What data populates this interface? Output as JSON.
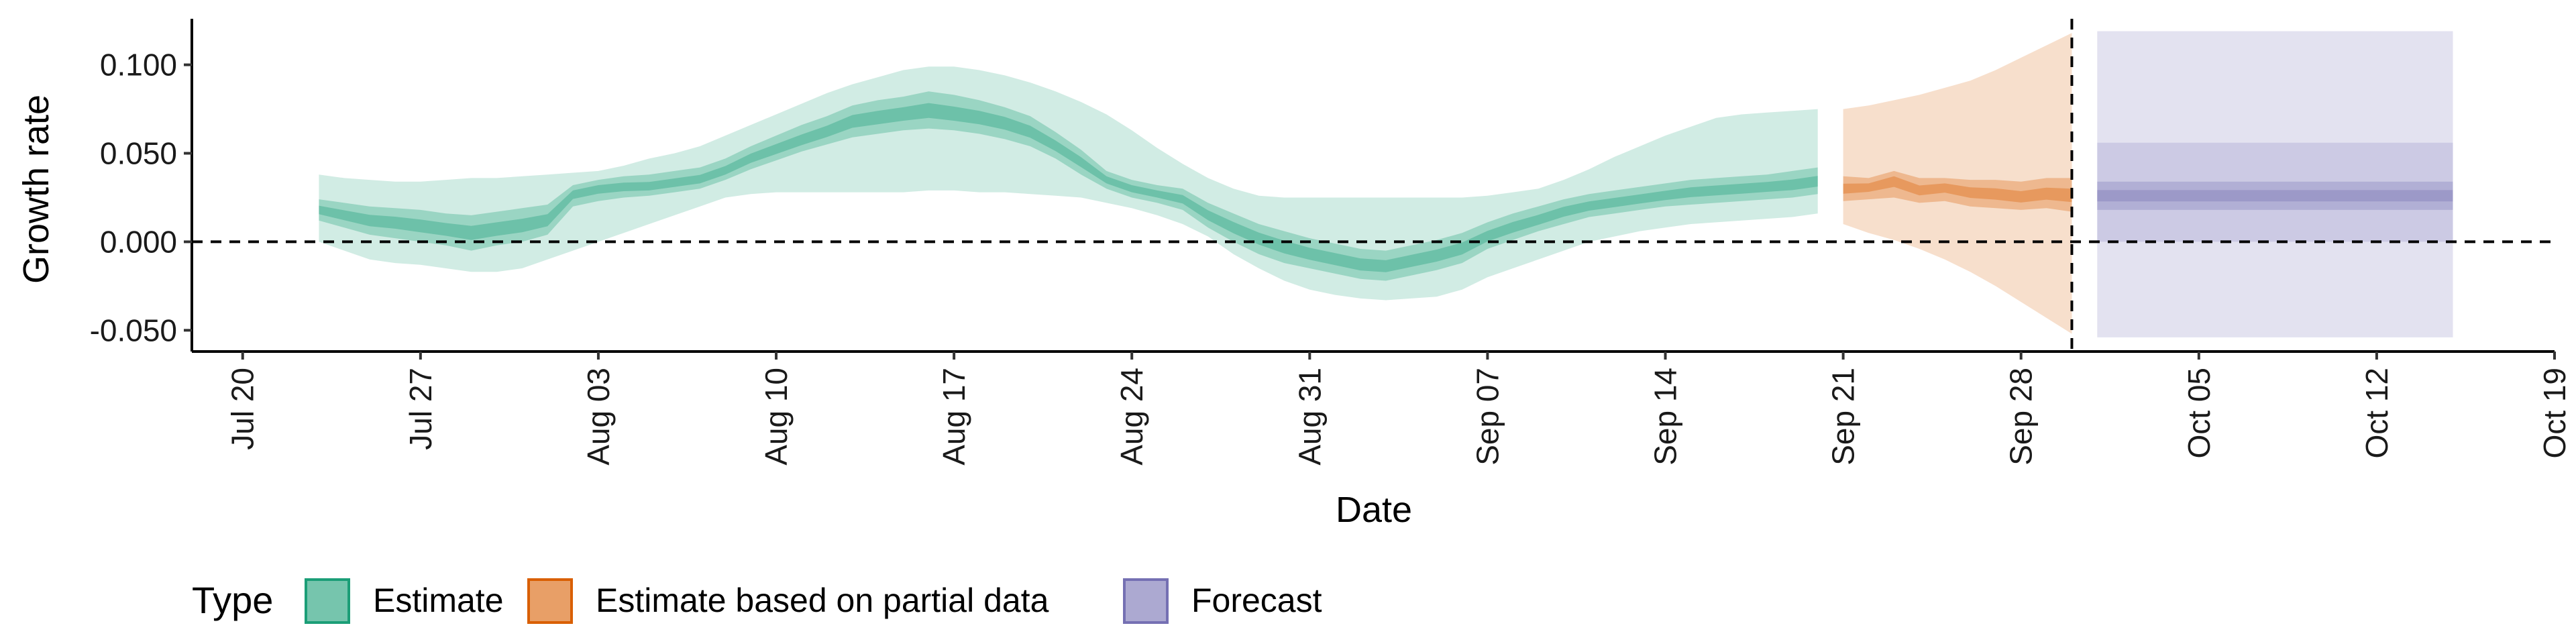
{
  "chart_data": {
    "type": "area",
    "xlabel": "Date",
    "ylabel": "Growth rate",
    "xlim": [
      "2020-07-18",
      "2020-10-19"
    ],
    "ylim": [
      -0.062,
      0.126
    ],
    "x_ticks": [
      {
        "date": "2020-07-20",
        "label": "Jul 20"
      },
      {
        "date": "2020-07-27",
        "label": "Jul 27"
      },
      {
        "date": "2020-08-03",
        "label": "Aug 03"
      },
      {
        "date": "2020-08-10",
        "label": "Aug 10"
      },
      {
        "date": "2020-08-17",
        "label": "Aug 17"
      },
      {
        "date": "2020-08-24",
        "label": "Aug 24"
      },
      {
        "date": "2020-08-31",
        "label": "Aug 31"
      },
      {
        "date": "2020-09-07",
        "label": "Sep 07"
      },
      {
        "date": "2020-09-14",
        "label": "Sep 14"
      },
      {
        "date": "2020-09-21",
        "label": "Sep 21"
      },
      {
        "date": "2020-09-28",
        "label": "Sep 28"
      },
      {
        "date": "2020-10-05",
        "label": "Oct 05"
      },
      {
        "date": "2020-10-12",
        "label": "Oct 12"
      },
      {
        "date": "2020-10-19",
        "label": "Oct 19"
      }
    ],
    "y_ticks": [
      {
        "value": 0.1,
        "label": "0.100"
      },
      {
        "value": 0.05,
        "label": "0.050"
      },
      {
        "value": 0.0,
        "label": "0.000"
      },
      {
        "value": -0.05,
        "label": "-0.050"
      }
    ],
    "reference_lines": {
      "horizontal_y": 0.0,
      "vertical_x": "2020-09-30"
    },
    "legend": {
      "title": "Type",
      "position": "bottom-left"
    },
    "series": [
      {
        "name": "Estimate",
        "color": "#1B9E77",
        "x": [
          "2020-07-23",
          "2020-07-24",
          "2020-07-25",
          "2020-07-26",
          "2020-07-27",
          "2020-07-28",
          "2020-07-29",
          "2020-07-30",
          "2020-07-31",
          "2020-08-01",
          "2020-08-02",
          "2020-08-03",
          "2020-08-04",
          "2020-08-05",
          "2020-08-06",
          "2020-08-07",
          "2020-08-08",
          "2020-08-09",
          "2020-08-10",
          "2020-08-11",
          "2020-08-12",
          "2020-08-13",
          "2020-08-14",
          "2020-08-15",
          "2020-08-16",
          "2020-08-17",
          "2020-08-18",
          "2020-08-19",
          "2020-08-20",
          "2020-08-21",
          "2020-08-22",
          "2020-08-23",
          "2020-08-24",
          "2020-08-25",
          "2020-08-26",
          "2020-08-27",
          "2020-08-28",
          "2020-08-29",
          "2020-08-30",
          "2020-08-31",
          "2020-09-01",
          "2020-09-02",
          "2020-09-03",
          "2020-09-04",
          "2020-09-05",
          "2020-09-06",
          "2020-09-07",
          "2020-09-08",
          "2020-09-09",
          "2020-09-10",
          "2020-09-11",
          "2020-09-12",
          "2020-09-13",
          "2020-09-14",
          "2020-09-15",
          "2020-09-16",
          "2020-09-17",
          "2020-09-18",
          "2020-09-19",
          "2020-09-20"
        ],
        "median": [
          0.018,
          0.015,
          0.012,
          0.011,
          0.009,
          0.007,
          0.005,
          0.007,
          0.009,
          0.012,
          0.027,
          0.03,
          0.031,
          0.031,
          0.033,
          0.035,
          0.04,
          0.047,
          0.052,
          0.057,
          0.062,
          0.068,
          0.07,
          0.072,
          0.074,
          0.072,
          0.07,
          0.067,
          0.062,
          0.054,
          0.045,
          0.035,
          0.03,
          0.027,
          0.024,
          0.015,
          0.008,
          0.002,
          -0.003,
          -0.007,
          -0.01,
          -0.013,
          -0.014,
          -0.011,
          -0.008,
          -0.004,
          0.003,
          0.008,
          0.012,
          0.017,
          0.02,
          0.022,
          0.024,
          0.026,
          0.028,
          0.029,
          0.03,
          0.031,
          0.032,
          0.034
        ],
        "q25": [
          0.012,
          0.008,
          0.004,
          0.002,
          0.0,
          -0.002,
          -0.005,
          -0.002,
          0.0,
          0.004,
          0.02,
          0.023,
          0.025,
          0.026,
          0.028,
          0.03,
          0.035,
          0.041,
          0.046,
          0.051,
          0.055,
          0.059,
          0.061,
          0.063,
          0.064,
          0.063,
          0.061,
          0.058,
          0.054,
          0.047,
          0.038,
          0.03,
          0.025,
          0.022,
          0.018,
          0.008,
          0.0,
          -0.007,
          -0.012,
          -0.015,
          -0.018,
          -0.021,
          -0.022,
          -0.019,
          -0.016,
          -0.012,
          -0.004,
          0.001,
          0.006,
          0.01,
          0.014,
          0.016,
          0.018,
          0.02,
          0.021,
          0.022,
          0.023,
          0.024,
          0.025,
          0.027
        ],
        "q75": [
          0.024,
          0.022,
          0.02,
          0.019,
          0.018,
          0.016,
          0.015,
          0.017,
          0.019,
          0.021,
          0.032,
          0.035,
          0.037,
          0.038,
          0.04,
          0.042,
          0.047,
          0.054,
          0.06,
          0.066,
          0.071,
          0.077,
          0.08,
          0.082,
          0.085,
          0.083,
          0.08,
          0.076,
          0.071,
          0.062,
          0.052,
          0.04,
          0.035,
          0.032,
          0.03,
          0.022,
          0.016,
          0.01,
          0.006,
          0.002,
          -0.001,
          -0.004,
          -0.005,
          -0.002,
          0.001,
          0.005,
          0.011,
          0.016,
          0.02,
          0.024,
          0.027,
          0.029,
          0.031,
          0.033,
          0.035,
          0.036,
          0.037,
          0.038,
          0.04,
          0.042
        ],
        "q05": [
          0.0,
          -0.005,
          -0.01,
          -0.012,
          -0.013,
          -0.015,
          -0.017,
          -0.017,
          -0.015,
          -0.01,
          -0.005,
          0.0,
          0.005,
          0.01,
          0.015,
          0.02,
          0.025,
          0.027,
          0.028,
          0.028,
          0.028,
          0.028,
          0.028,
          0.028,
          0.029,
          0.029,
          0.028,
          0.028,
          0.027,
          0.026,
          0.025,
          0.022,
          0.019,
          0.015,
          0.01,
          0.003,
          -0.007,
          -0.015,
          -0.022,
          -0.027,
          -0.03,
          -0.032,
          -0.033,
          -0.032,
          -0.031,
          -0.027,
          -0.02,
          -0.015,
          -0.01,
          -0.005,
          0.0,
          0.003,
          0.006,
          0.008,
          0.01,
          0.011,
          0.012,
          0.013,
          0.014,
          0.016
        ],
        "q95": [
          0.038,
          0.036,
          0.035,
          0.034,
          0.034,
          0.035,
          0.036,
          0.036,
          0.037,
          0.038,
          0.039,
          0.04,
          0.043,
          0.047,
          0.05,
          0.054,
          0.06,
          0.066,
          0.072,
          0.078,
          0.084,
          0.089,
          0.093,
          0.097,
          0.099,
          0.099,
          0.097,
          0.094,
          0.09,
          0.085,
          0.079,
          0.072,
          0.063,
          0.053,
          0.044,
          0.036,
          0.03,
          0.026,
          0.025,
          0.025,
          0.025,
          0.025,
          0.025,
          0.025,
          0.025,
          0.025,
          0.026,
          0.028,
          0.03,
          0.035,
          0.041,
          0.048,
          0.054,
          0.06,
          0.065,
          0.07,
          0.072,
          0.073,
          0.074,
          0.075
        ]
      },
      {
        "name": "Estimate based on partial data",
        "color": "#D95F02",
        "x": [
          "2020-09-21",
          "2020-09-22",
          "2020-09-23",
          "2020-09-24",
          "2020-09-25",
          "2020-09-26",
          "2020-09-27",
          "2020-09-28",
          "2020-09-29",
          "2020-09-30"
        ],
        "median": [
          0.03,
          0.031,
          0.035,
          0.029,
          0.031,
          0.028,
          0.027,
          0.025,
          0.027,
          0.026
        ],
        "q25": [
          0.023,
          0.024,
          0.025,
          0.022,
          0.023,
          0.02,
          0.019,
          0.018,
          0.019,
          0.017
        ],
        "q75": [
          0.037,
          0.036,
          0.04,
          0.036,
          0.036,
          0.035,
          0.035,
          0.034,
          0.036,
          0.036
        ],
        "q05": [
          0.01,
          0.005,
          0.001,
          -0.004,
          -0.01,
          -0.017,
          -0.025,
          -0.034,
          -0.043,
          -0.052
        ],
        "q95": [
          0.075,
          0.077,
          0.08,
          0.083,
          0.087,
          0.091,
          0.097,
          0.104,
          0.111,
          0.118
        ]
      },
      {
        "name": "Forecast",
        "color": "#7570B3",
        "x": [
          "2020-10-01",
          "2020-10-15"
        ],
        "median": [
          0.026,
          0.026
        ],
        "q25": [
          0.018,
          0.018
        ],
        "q75": [
          0.034,
          0.034
        ],
        "q05": [
          0.0,
          0.0
        ],
        "q95": [
          0.056,
          0.056
        ],
        "q01": [
          -0.054,
          -0.054
        ],
        "q99": [
          0.119,
          0.119
        ]
      }
    ]
  }
}
